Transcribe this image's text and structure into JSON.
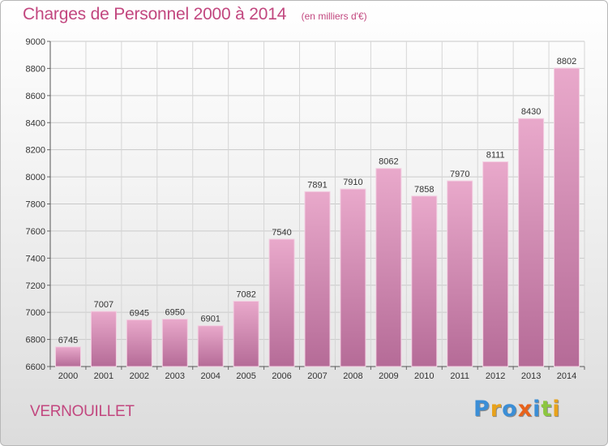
{
  "chart_data": {
    "type": "bar",
    "title": "Charges de Personnel 2000 à 2014",
    "subtitle": "(en milliers d'€)",
    "categories": [
      "2000",
      "2001",
      "2002",
      "2003",
      "2004",
      "2005",
      "2006",
      "2007",
      "2008",
      "2009",
      "2010",
      "2011",
      "2012",
      "2013",
      "2014"
    ],
    "values": [
      6745,
      7007,
      6945,
      6950,
      6901,
      7082,
      7540,
      7891,
      7910,
      8062,
      7858,
      7970,
      8111,
      8430,
      8802
    ],
    "ylim": [
      6600,
      9000
    ],
    "yticks": [
      6600,
      6800,
      7000,
      7200,
      7400,
      7600,
      7800,
      8000,
      8200,
      8400,
      8600,
      8800,
      9000
    ],
    "xlabel": "",
    "ylabel": "",
    "grid": true,
    "bar_color": "#d98fb7",
    "bar_color_dark": "#b86a97"
  },
  "footer": {
    "commune": "VERNOUILLET",
    "logo_letters": [
      "P",
      "r",
      "o",
      "x",
      "i",
      "t",
      "i"
    ],
    "logo_colors": [
      "#3b8ed6",
      "#e8a21b",
      "#3b8ed6",
      "#e8621b",
      "#3b8ed6",
      "#8cc63f",
      "#e8a21b"
    ]
  }
}
